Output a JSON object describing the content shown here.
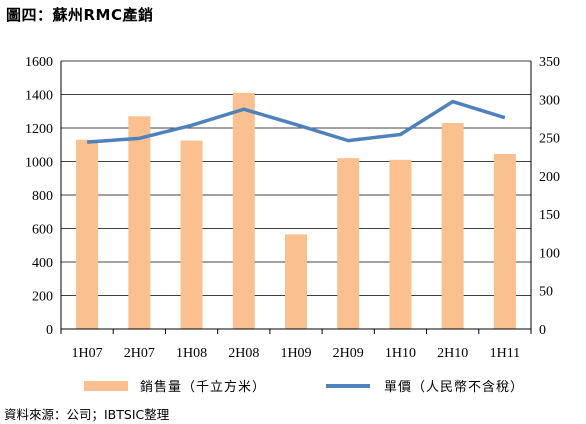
{
  "title": "圖四：蘇州RMC產銷",
  "source": "資料來源：公司；IBTSIC整理",
  "chart_data": {
    "type": "bar",
    "categories": [
      "1H07",
      "2H07",
      "1H08",
      "2H08",
      "1H09",
      "2H09",
      "1H10",
      "2H10",
      "1H11"
    ],
    "series": [
      {
        "name": "銷售量（千立方米）",
        "type": "bar",
        "axis": "left",
        "color": "#FAC090",
        "values": [
          1130,
          1270,
          1125,
          1410,
          565,
          1020,
          1010,
          1230,
          1045
        ]
      },
      {
        "name": "單價（人民幣不含稅）",
        "type": "line",
        "axis": "right",
        "color": "#4F81BD",
        "values": [
          244,
          249,
          266,
          287,
          267,
          246,
          254,
          297,
          276
        ]
      }
    ],
    "y_left": {
      "min": 0,
      "max": 1600,
      "ticks": [
        0,
        200,
        400,
        600,
        800,
        1000,
        1200,
        1400,
        1600
      ]
    },
    "y_right": {
      "min": 0,
      "max": 350,
      "ticks": [
        0,
        50,
        100,
        150,
        200,
        250,
        300,
        350
      ]
    },
    "grid": "horizontal",
    "legend": "bottom"
  }
}
